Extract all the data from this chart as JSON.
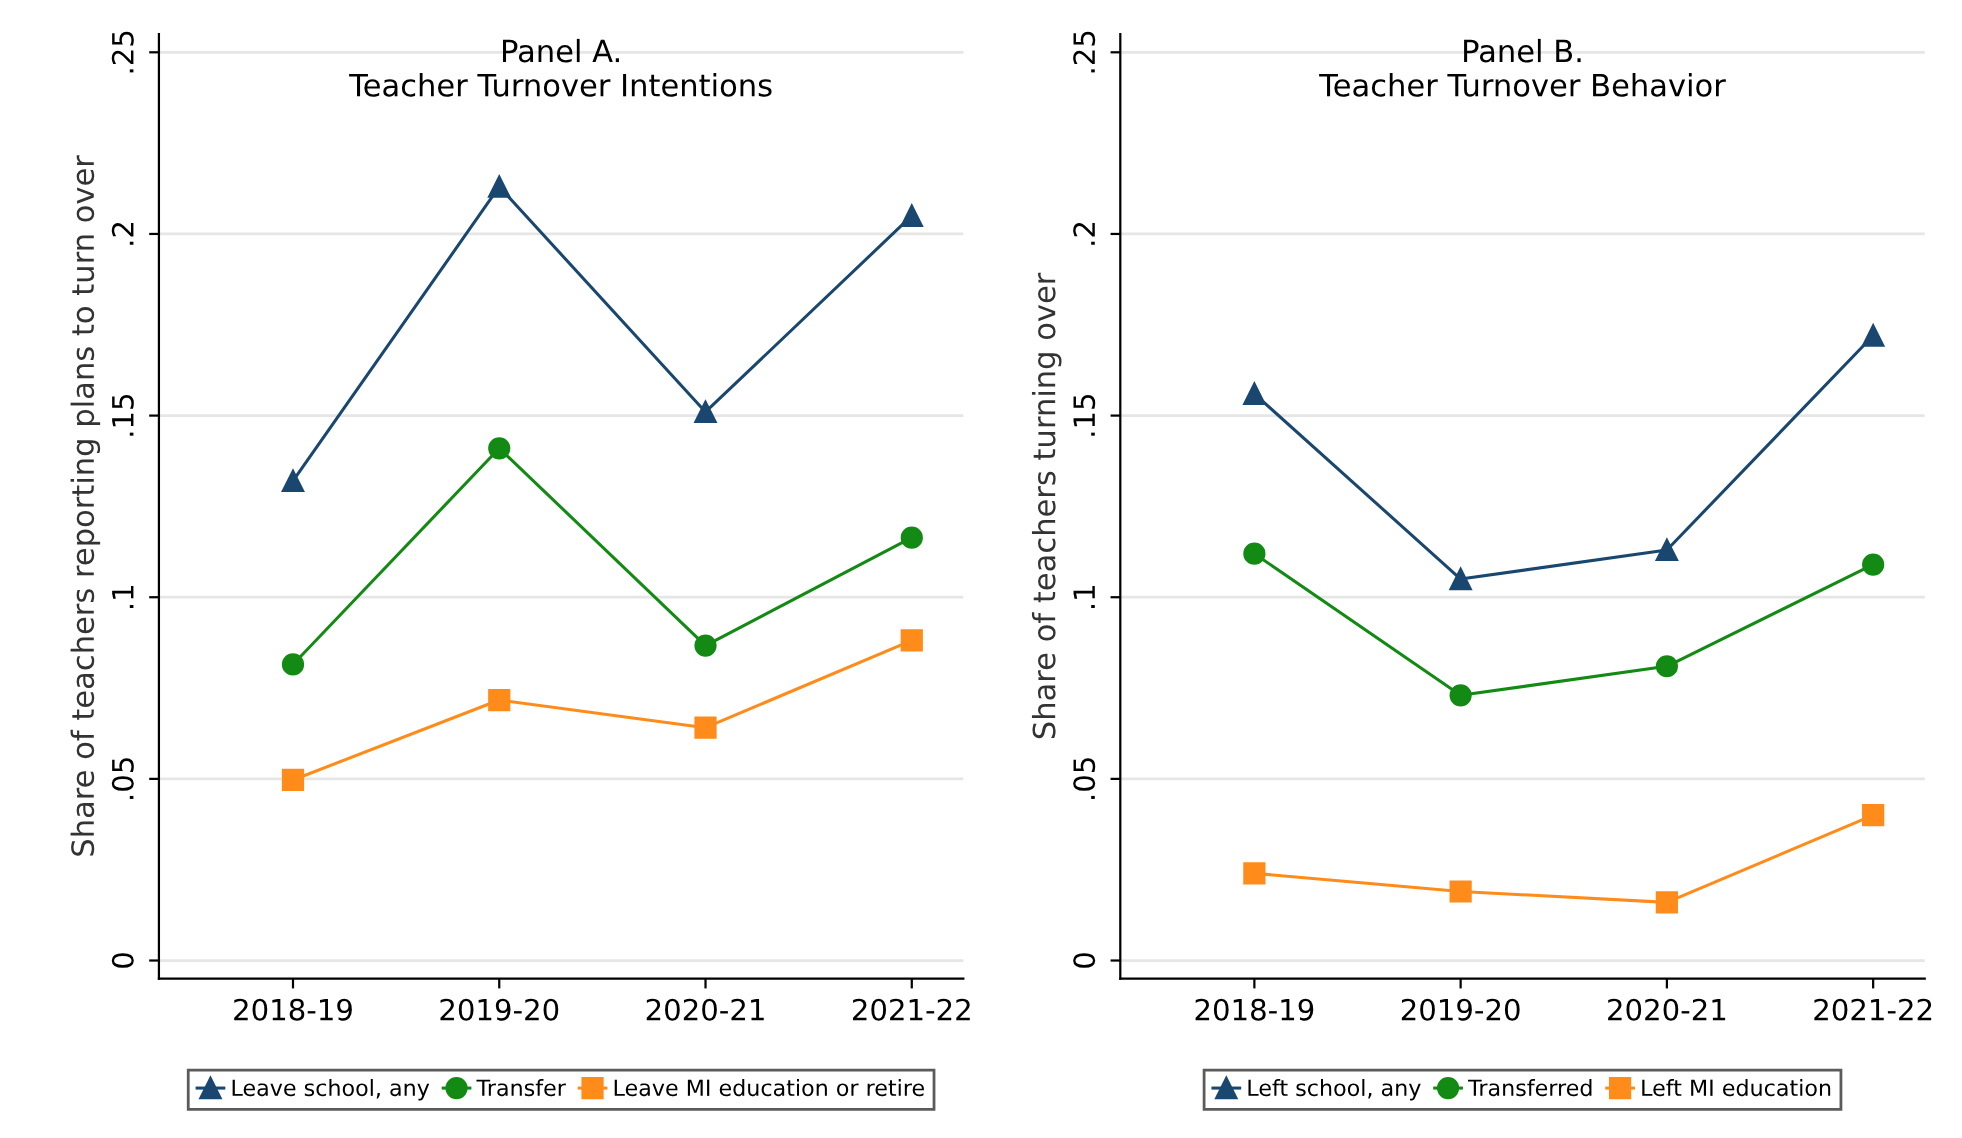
{
  "chart_data": [
    {
      "type": "line",
      "title": "Panel A.",
      "subtitle": "Teacher Turnover Intentions",
      "ylabel": "Share of teachers reporting plans to turn over",
      "categories": [
        "2018-19",
        "2019-20",
        "2020-21",
        "2021-22"
      ],
      "series": [
        {
          "name": "Leave school, any",
          "color": "#1a476f",
          "marker": "triangle",
          "values": [
            0.132,
            0.213,
            0.151,
            0.205
          ]
        },
        {
          "name": "Transfer",
          "color": "#138a13",
          "marker": "circle",
          "values": [
            0.0815,
            0.141,
            0.0867,
            0.1164
          ]
        },
        {
          "name": "Leave MI education or retire",
          "color": "#ff8c1a",
          "marker": "square",
          "values": [
            0.0497,
            0.0717,
            0.0641,
            0.0881
          ]
        }
      ],
      "ylim": [
        -0.005,
        0.255
      ],
      "yticks": [
        0,
        {
          "value": 0.05,
          "label": ".05"
        },
        {
          "value": 0.1,
          "label": ".1"
        },
        {
          "value": 0.15,
          "label": ".15"
        },
        {
          "value": 0.2,
          "label": ".2"
        },
        {
          "value": 0.25,
          "label": ".25"
        }
      ],
      "grid": "y",
      "legend": "bottom",
      "line_style": "solid"
    },
    {
      "type": "line",
      "title": "Panel B.",
      "subtitle": "Teacher Turnover Behavior",
      "ylabel": "Share of teachers turning over",
      "categories": [
        "2018-19",
        "2019-20",
        "2020-21",
        "2021-22"
      ],
      "series": [
        {
          "name": "Left school, any",
          "color": "#1a476f",
          "marker": "triangle",
          "values": [
            0.156,
            0.105,
            0.113,
            0.172
          ]
        },
        {
          "name": "Transferred",
          "color": "#138a13",
          "marker": "circle",
          "values": [
            0.112,
            0.073,
            0.081,
            0.109
          ]
        },
        {
          "name": "Left MI education",
          "color": "#ff8c1a",
          "marker": "square",
          "values": [
            0.024,
            0.019,
            0.016,
            0.04
          ]
        }
      ],
      "ylim": [
        -0.005,
        0.255
      ],
      "yticks": [
        0,
        {
          "value": 0.05,
          "label": ".05"
        },
        {
          "value": 0.1,
          "label": ".1"
        },
        {
          "value": 0.15,
          "label": ".15"
        },
        {
          "value": 0.2,
          "label": ".2"
        },
        {
          "value": 0.25,
          "label": ".25"
        }
      ],
      "grid": "y",
      "legend": "bottom",
      "line_style": "solid"
    }
  ]
}
